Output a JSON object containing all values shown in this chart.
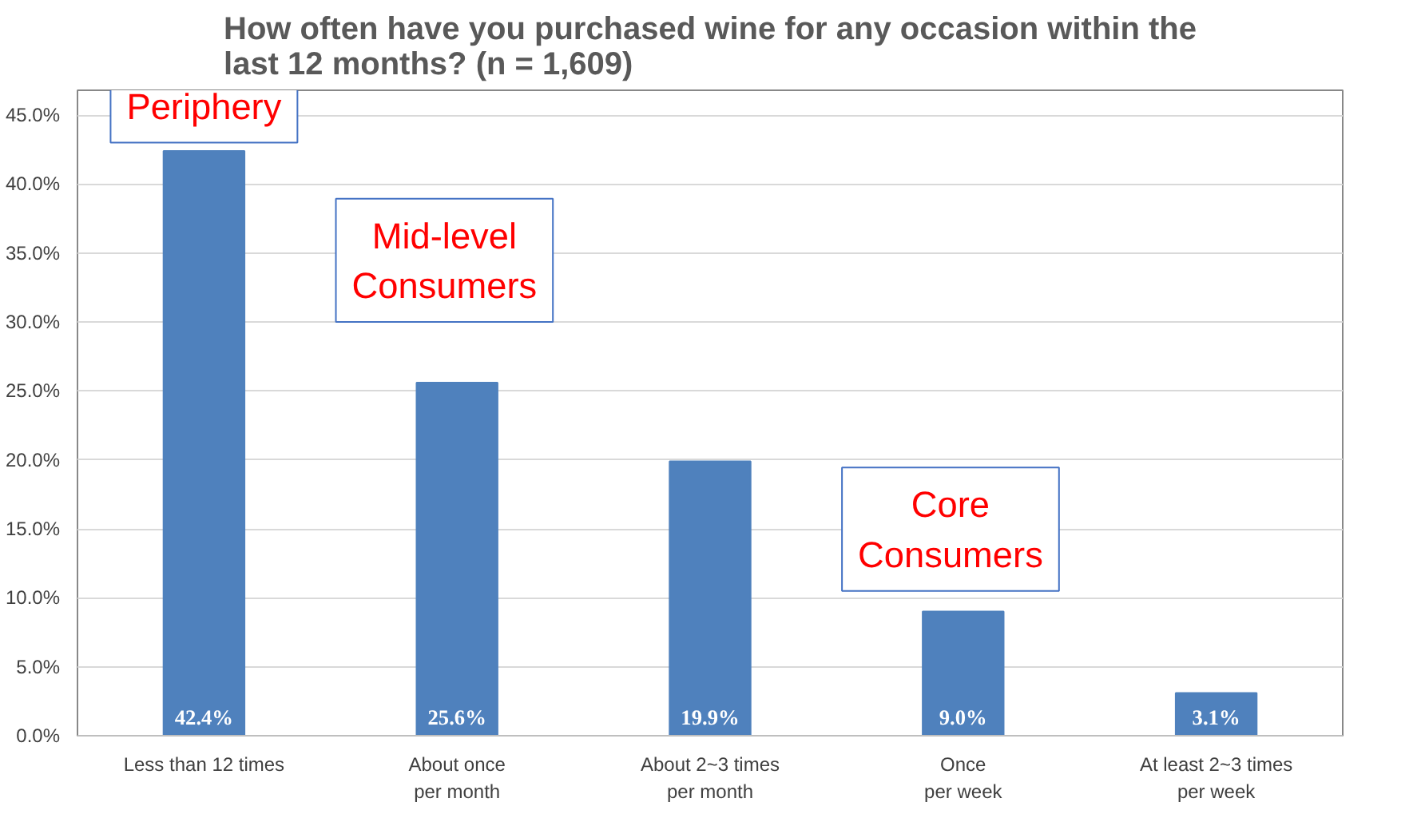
{
  "chart_data": {
    "type": "bar",
    "title": "How often have you purchased wine for any occasion within the last 12 months? (n = 1,609)",
    "categories": [
      "Less than 12 times",
      "About once\nper month",
      "About 2~3 times\nper month",
      "Once\nper week",
      "At least 2~3 times\nper week"
    ],
    "values": [
      42.4,
      25.6,
      19.9,
      9.0,
      3.1
    ],
    "value_labels": [
      "42.4%",
      "25.6%",
      "19.9%",
      "9.0%",
      "3.1%"
    ],
    "color": "#4f81bd",
    "ylim": [
      0,
      45
    ],
    "yticks": [
      {
        "value": 0,
        "label": "0.0%"
      },
      {
        "value": 5,
        "label": "5.0%"
      },
      {
        "value": 10,
        "label": "10.0%"
      },
      {
        "value": 15,
        "label": "15.0%"
      },
      {
        "value": 20,
        "label": "20.0%"
      },
      {
        "value": 25,
        "label": "25.0%"
      },
      {
        "value": 30,
        "label": "30.0%"
      },
      {
        "value": 35,
        "label": "35.0%"
      },
      {
        "value": 40,
        "label": "40.0%"
      },
      {
        "value": 45,
        "label": "45.0%"
      }
    ],
    "grid": "y",
    "annotations": [
      "Periphery",
      "Mid-level\nConsumers",
      "Core\nConsumers"
    ]
  }
}
